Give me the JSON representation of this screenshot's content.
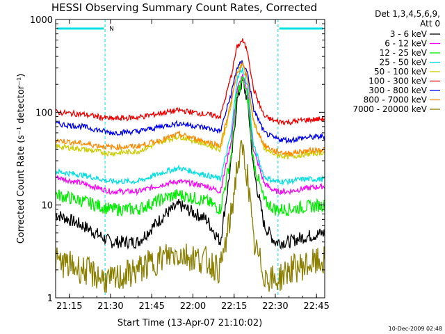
{
  "chart_data": {
    "type": "line",
    "title": "HESSI Observing Summary Count Rates, Corrected",
    "xlabel": "Start Time (13-Apr-07 21:10:02)",
    "ylabel": "Corrected Count Rate (s⁻¹ detector⁻¹)",
    "y_scale": "log",
    "ylim": [
      1,
      1000
    ],
    "xlim": [
      "21:10",
      "22:48"
    ],
    "x_ticks": [
      "21:15",
      "21:30",
      "21:45",
      "22:00",
      "22:15",
      "22:30",
      "22:45"
    ],
    "y_ticks": [
      "1",
      "10",
      "100",
      "1000"
    ],
    "legend_title_1": "Det 1,3,4,5,6,9,",
    "legend_title_2": "Att 0",
    "legend_position": "right",
    "footer": "10-Dec-2009 02:48",
    "night_marker_label": "N",
    "night_intervals": [
      [
        "21:10",
        "21:28"
      ],
      [
        "22:31",
        "22:48"
      ]
    ],
    "series": [
      {
        "name": "3 - 6 keV",
        "color": "#000000",
        "x": [
          "21:10",
          "21:20",
          "21:30",
          "21:40",
          "21:50",
          "21:55",
          "22:05",
          "22:10",
          "22:14",
          "22:16",
          "22:18",
          "22:20",
          "22:22",
          "22:26",
          "22:30",
          "22:35",
          "22:40",
          "22:48"
        ],
        "y": [
          8,
          6,
          4,
          4,
          8,
          10,
          7,
          4,
          30,
          130,
          220,
          130,
          25,
          6,
          4,
          4,
          4.5,
          5
        ]
      },
      {
        "name": "6 - 12 keV",
        "color": "#ff00ff",
        "x": [
          "21:10",
          "21:20",
          "21:30",
          "21:40",
          "21:50",
          "21:55",
          "22:05",
          "22:10",
          "22:14",
          "22:16",
          "22:18",
          "22:20",
          "22:22",
          "22:26",
          "22:30",
          "22:35",
          "22:40",
          "22:48"
        ],
        "y": [
          20,
          17,
          14,
          14,
          17,
          18,
          16,
          14,
          50,
          170,
          250,
          160,
          40,
          17,
          14,
          14,
          15,
          16
        ]
      },
      {
        "name": "12 - 25 keV",
        "color": "#00ee00",
        "x": [
          "21:10",
          "21:20",
          "21:30",
          "21:40",
          "21:50",
          "21:55",
          "22:05",
          "22:10",
          "22:14",
          "22:16",
          "22:18",
          "22:20",
          "22:22",
          "22:26",
          "22:30",
          "22:35",
          "22:40",
          "22:48"
        ],
        "y": [
          13,
          11,
          9,
          9,
          12,
          13,
          11,
          9,
          35,
          150,
          230,
          140,
          30,
          11,
          9,
          9,
          9.5,
          10
        ]
      },
      {
        "name": "25 - 50 keV",
        "color": "#00e0e0",
        "x": [
          "21:10",
          "21:20",
          "21:30",
          "21:40",
          "21:50",
          "21:55",
          "22:05",
          "22:10",
          "22:14",
          "22:16",
          "22:18",
          "22:20",
          "22:22",
          "22:26",
          "22:30",
          "22:35",
          "22:40",
          "22:48"
        ],
        "y": [
          23,
          21,
          18,
          18,
          23,
          25,
          21,
          19,
          60,
          220,
          300,
          190,
          45,
          20,
          18,
          18,
          19,
          19
        ]
      },
      {
        "name": "50 - 100 keV",
        "color": "#cccc00",
        "x": [
          "21:10",
          "21:20",
          "21:30",
          "21:40",
          "21:50",
          "21:55",
          "22:05",
          "22:10",
          "22:14",
          "22:16",
          "22:18",
          "22:20",
          "22:22",
          "22:26",
          "22:30",
          "22:35",
          "22:40",
          "22:48"
        ],
        "y": [
          43,
          40,
          36,
          38,
          50,
          55,
          45,
          40,
          120,
          280,
          340,
          230,
          80,
          40,
          35,
          33,
          35,
          37
        ]
      },
      {
        "name": "100 - 300 keV",
        "color": "#ee0000",
        "x": [
          "21:10",
          "21:20",
          "21:30",
          "21:40",
          "21:50",
          "21:55",
          "22:05",
          "22:10",
          "22:14",
          "22:16",
          "22:18",
          "22:20",
          "22:22",
          "22:26",
          "22:30",
          "22:35",
          "22:40",
          "22:48"
        ],
        "y": [
          100,
          95,
          85,
          88,
          100,
          105,
          95,
          90,
          250,
          500,
          600,
          450,
          180,
          90,
          80,
          78,
          82,
          85
        ]
      },
      {
        "name": "300 - 800 keV",
        "color": "#0000ee",
        "x": [
          "21:10",
          "21:20",
          "21:30",
          "21:40",
          "21:50",
          "21:55",
          "22:05",
          "22:10",
          "22:14",
          "22:16",
          "22:18",
          "22:20",
          "22:22",
          "22:26",
          "22:30",
          "22:35",
          "22:40",
          "22:48"
        ],
        "y": [
          75,
          70,
          60,
          62,
          72,
          76,
          68,
          62,
          160,
          300,
          350,
          260,
          110,
          60,
          52,
          50,
          53,
          55
        ]
      },
      {
        "name": "800 - 7000 keV",
        "color": "#ff8800",
        "x": [
          "21:10",
          "21:20",
          "21:30",
          "21:40",
          "21:50",
          "21:55",
          "22:05",
          "22:10",
          "22:14",
          "22:16",
          "22:18",
          "22:20",
          "22:22",
          "22:26",
          "22:30",
          "22:35",
          "22:40",
          "22:48"
        ],
        "y": [
          50,
          46,
          42,
          43,
          52,
          58,
          48,
          44,
          130,
          260,
          330,
          220,
          80,
          44,
          38,
          36,
          38,
          40
        ]
      },
      {
        "name": "7000 - 20000 keV",
        "color": "#8b8000",
        "x": [
          "21:10",
          "21:20",
          "21:30",
          "21:40",
          "21:50",
          "21:55",
          "22:05",
          "22:10",
          "22:14",
          "22:16",
          "22:18",
          "22:20",
          "22:22",
          "22:26",
          "22:30",
          "22:35",
          "22:40",
          "22:48"
        ],
        "y": [
          2.5,
          2,
          1.5,
          2,
          2.8,
          3,
          2.5,
          2,
          8,
          25,
          40,
          20,
          4,
          1.8,
          1.5,
          2,
          2.2,
          2.5
        ]
      }
    ]
  }
}
